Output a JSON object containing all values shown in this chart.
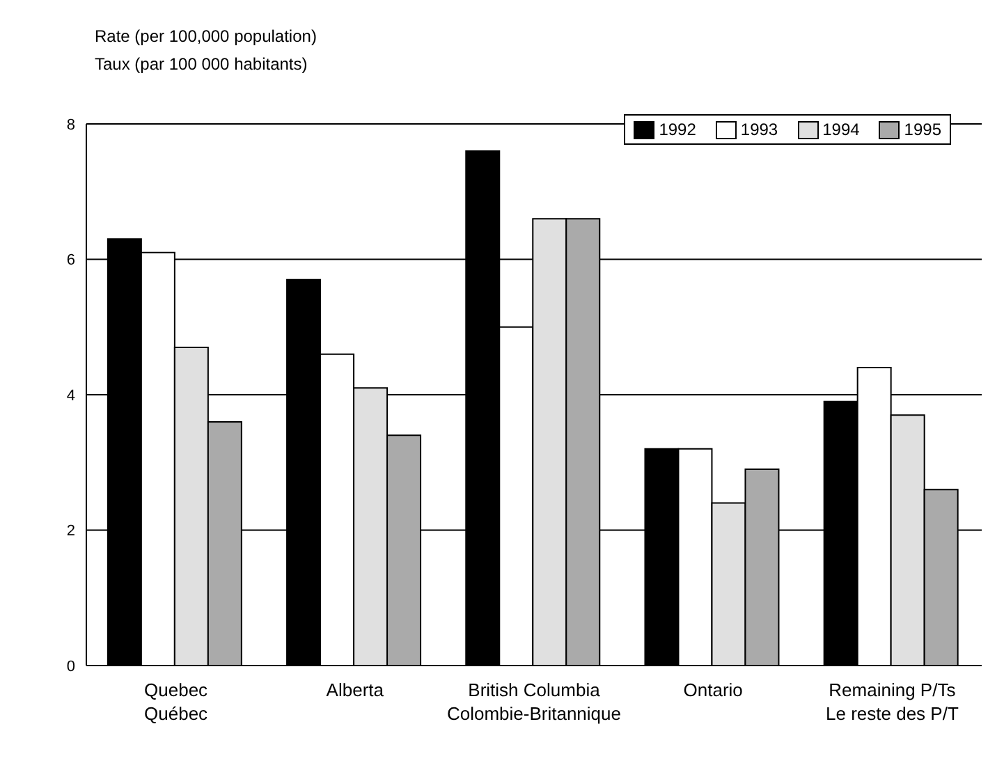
{
  "chart_data": {
    "type": "bar",
    "ylabel": "Rate (per 100,000 population)\nTaux (par 100 000 habitants)",
    "categories": [
      "Quebec\nQuébec",
      "Alberta",
      "British Columbia\nColombie-Britannique",
      "Ontario",
      "Remaining P/Ts\nLe reste des P/T"
    ],
    "series": [
      {
        "name": "1992",
        "color": "#000000",
        "values": [
          6.3,
          5.7,
          7.6,
          3.2,
          3.9
        ]
      },
      {
        "name": "1993",
        "color": "#ffffff",
        "values": [
          6.1,
          4.6,
          5.0,
          3.2,
          4.4
        ]
      },
      {
        "name": "1994",
        "color": "#e0e0e0",
        "values": [
          4.7,
          4.1,
          6.6,
          2.4,
          3.7
        ]
      },
      {
        "name": "1995",
        "color": "#aaaaaa",
        "values": [
          3.6,
          3.4,
          6.6,
          2.9,
          2.6
        ]
      }
    ],
    "ylim": [
      0,
      8
    ],
    "yticks": [
      0,
      2,
      4,
      6,
      8
    ],
    "grid": "y",
    "legend": "top right"
  }
}
